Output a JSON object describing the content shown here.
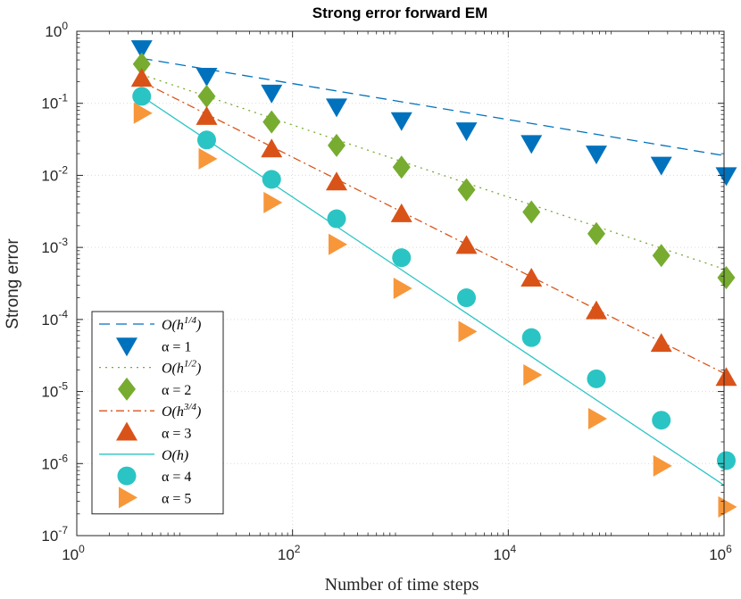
{
  "chart_data": {
    "type": "scatter",
    "title": "Strong error forward EM",
    "xlabel": "Number of time steps",
    "ylabel": "Strong error",
    "xscale": "log",
    "yscale": "log",
    "xlim": [
      1,
      1000000
    ],
    "ylim": [
      1e-07,
      1
    ],
    "x_ticks": [
      {
        "base": "10",
        "exp": "0",
        "value": 1
      },
      {
        "base": "10",
        "exp": "2",
        "value": 100
      },
      {
        "base": "10",
        "exp": "4",
        "value": 10000
      },
      {
        "base": "10",
        "exp": "6",
        "value": 1000000
      }
    ],
    "y_ticks": [
      {
        "base": "10",
        "exp": "0",
        "value": 1
      },
      {
        "base": "10",
        "exp": "-1",
        "value": 0.1
      },
      {
        "base": "10",
        "exp": "-2",
        "value": 0.01
      },
      {
        "base": "10",
        "exp": "-3",
        "value": 0.001
      },
      {
        "base": "10",
        "exp": "-4",
        "value": 0.0001
      },
      {
        "base": "10",
        "exp": "-5",
        "value": 1e-05
      },
      {
        "base": "10",
        "exp": "-6",
        "value": 1e-06
      },
      {
        "base": "10",
        "exp": "-7",
        "value": 1e-07
      }
    ],
    "x": [
      4,
      16,
      64,
      256,
      1024,
      4096,
      16384,
      65536,
      262144,
      1048576
    ],
    "reference_lines": [
      {
        "name": "O(h^{1/4})",
        "label_main": "O(h",
        "label_sup": "1/4",
        "label_tail": ")",
        "color": "#0072BD",
        "dash": "12,7",
        "y_start": 0.42,
        "slope": -0.25
      },
      {
        "name": "O(h^{1/2})",
        "label_main": "O(h",
        "label_sup": "1/2",
        "label_tail": ")",
        "color": "#77AC30",
        "dash": "2,5",
        "y_start": 0.25,
        "slope": -0.5
      },
      {
        "name": "O(h^{3/4})",
        "label_main": "O(h",
        "label_sup": "3/4",
        "label_tail": ")",
        "color": "#D95319",
        "dash": "9,4,2,4",
        "y_start": 0.2,
        "slope": -0.75
      },
      {
        "name": "O(h)",
        "label_main": "O(h)",
        "label_sup": "",
        "label_tail": "",
        "color": "#2BC4C4",
        "dash": "",
        "y_start": 0.125,
        "slope": -1.0
      }
    ],
    "series": [
      {
        "name": "α = 1",
        "alpha": "1",
        "marker": "triangle-down",
        "color": "#0072BD",
        "values": [
          0.58,
          0.24,
          0.14,
          0.09,
          0.058,
          0.042,
          0.028,
          0.02,
          0.014,
          0.01
        ]
      },
      {
        "name": "α = 2",
        "alpha": "2",
        "marker": "diamond",
        "color": "#77AC30",
        "values": [
          0.35,
          0.125,
          0.055,
          0.026,
          0.013,
          0.0063,
          0.0031,
          0.00155,
          0.00077,
          0.00038
        ]
      },
      {
        "name": "α = 3",
        "alpha": "3",
        "marker": "triangle-up",
        "color": "#D95319",
        "values": [
          0.22,
          0.065,
          0.023,
          0.008,
          0.0029,
          0.00105,
          0.00037,
          0.00013,
          4.6e-05,
          1.55e-05
        ]
      },
      {
        "name": "α = 4",
        "alpha": "4",
        "marker": "circle",
        "color": "#2BC4C4",
        "values": [
          0.125,
          0.031,
          0.0088,
          0.0025,
          0.00072,
          0.0002,
          5.6e-05,
          1.5e-05,
          4e-06,
          1.1e-06
        ]
      },
      {
        "name": "α = 5",
        "alpha": "5",
        "marker": "triangle-right",
        "color": "#F7973A",
        "values": [
          0.073,
          0.017,
          0.0042,
          0.0011,
          0.00027,
          6.8e-05,
          1.7e-05,
          4.2e-06,
          9.3e-07,
          2.5e-07
        ]
      }
    ],
    "legend": {
      "position": "bottom-left",
      "order": [
        "O(h^{1/4})",
        "α = 1",
        "O(h^{1/2})",
        "α = 2",
        "O(h^{3/4})",
        "α = 3",
        "O(h)",
        "α = 4",
        "α = 5"
      ]
    }
  }
}
